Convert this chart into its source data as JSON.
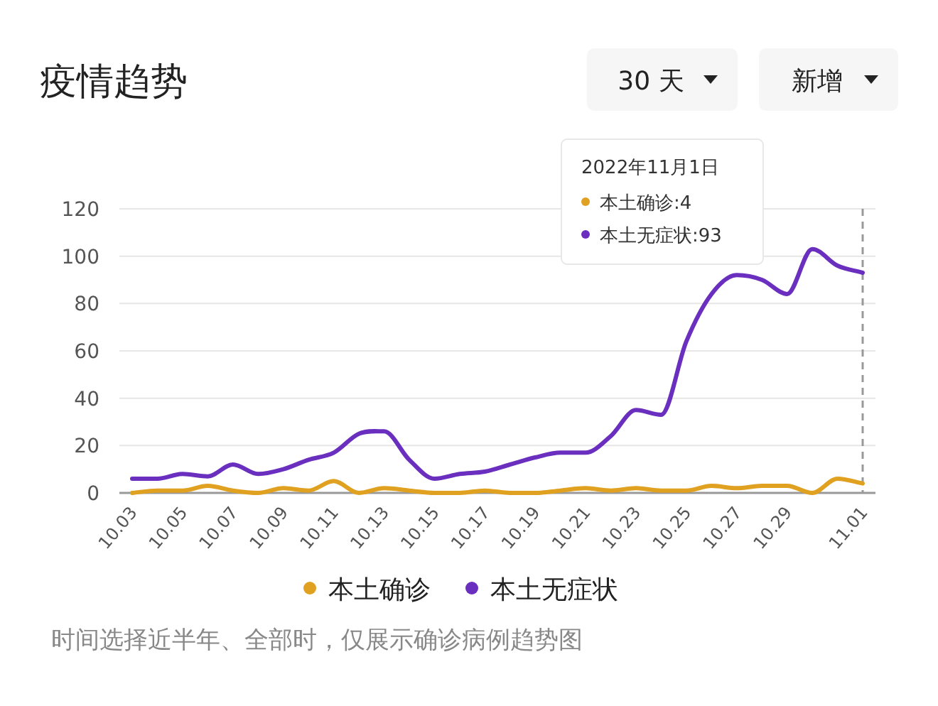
{
  "chart_data": {
    "type": "line",
    "title": "疫情趋势",
    "categories": [
      "10.03",
      null,
      "10.05",
      null,
      "10.07",
      null,
      "10.09",
      null,
      "10.11",
      null,
      "10.13",
      null,
      "10.15",
      null,
      "10.17",
      null,
      "10.19",
      null,
      "10.21",
      null,
      "10.23",
      null,
      "10.25",
      null,
      "10.27",
      null,
      "10.29",
      null,
      null,
      "11.01"
    ],
    "series": [
      {
        "name": "本土确诊",
        "color": "#e0a020",
        "values": [
          0,
          1,
          1,
          3,
          1,
          0,
          2,
          1,
          5,
          0,
          2,
          1,
          0,
          0,
          1,
          0,
          0,
          1,
          2,
          1,
          2,
          1,
          1,
          3,
          2,
          3,
          3,
          0,
          6,
          4
        ]
      },
      {
        "name": "本土无症状",
        "color": "#6a2fbf",
        "values": [
          6,
          6,
          8,
          7,
          12,
          8,
          10,
          14,
          17,
          25,
          26,
          14,
          6,
          8,
          9,
          12,
          15,
          17,
          17,
          24,
          35,
          33,
          64,
          84,
          92,
          90,
          84,
          103,
          96,
          93
        ]
      }
    ],
    "ylim": [
      0,
      120
    ],
    "yticks": [
      0,
      20,
      40,
      60,
      80,
      100,
      120
    ],
    "grid": "y",
    "legend": "bottom",
    "line_style": "solid",
    "marker": "none",
    "ref_lines": [
      {
        "axis": "x",
        "value": "11.01",
        "color": "#999999",
        "line_style": "dashed"
      }
    ],
    "annotations": [
      "30 天",
      "新增",
      "2022年11月1日",
      "本土确诊:4",
      "本土无症状:93",
      "时间选择近半年、全部时，仅展示确诊病例趋势图"
    ]
  }
}
